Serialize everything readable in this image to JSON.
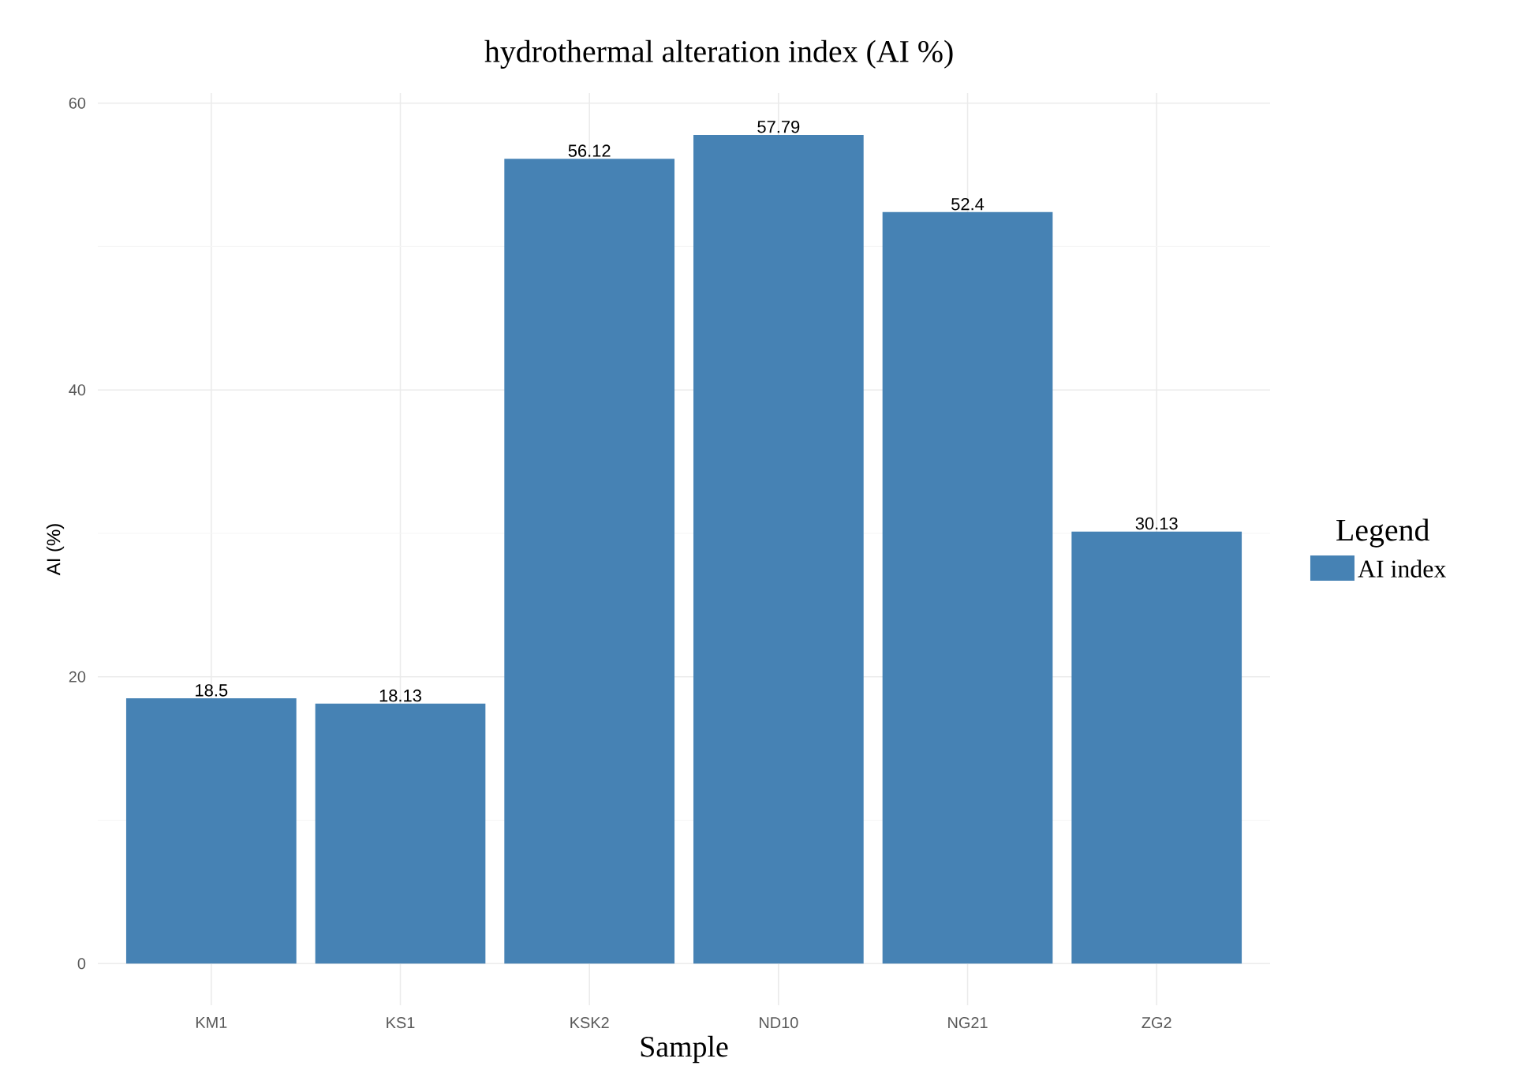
{
  "chart_data": {
    "type": "bar",
    "title": "hydrothermal alteration index (AI %)",
    "xlabel": "Sample",
    "ylabel": "AI (%)",
    "legend_title": "Legend",
    "categories": [
      "KM1",
      "KS1",
      "KSK2",
      "ND10",
      "NG21",
      "ZG2"
    ],
    "series": [
      {
        "name": "AI index",
        "color": "#4682b4",
        "values": [
          18.5,
          18.13,
          56.12,
          57.79,
          52.4,
          30.13
        ]
      }
    ],
    "ylim": [
      -2.9,
      60.7
    ],
    "yticks": [
      0,
      20,
      40,
      60
    ],
    "grid": true,
    "legend": "right",
    "data_labels": true
  }
}
